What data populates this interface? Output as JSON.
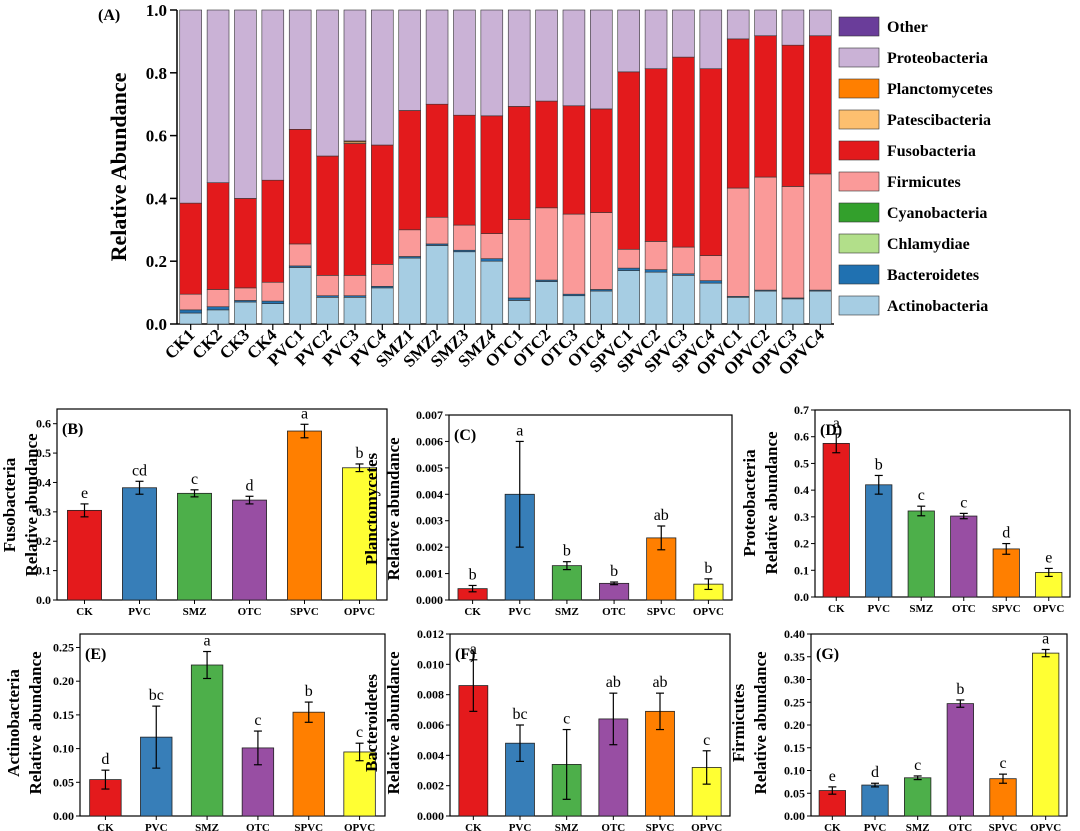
{
  "chart_data": [
    {
      "type": "bar",
      "subtype": "stacked-100",
      "panel": "(A)",
      "ylabel": "Relative Abundance",
      "ylim": [
        0,
        1.0
      ],
      "yticks": [
        "0.0",
        "0.2",
        "0.4",
        "0.6",
        "0.8",
        "1.0"
      ],
      "categories": [
        "CK1",
        "CK2",
        "CK3",
        "CK4",
        "PVC1",
        "PVC2",
        "PVC3",
        "PVC4",
        "SMZ1",
        "SMZ2",
        "SMZ3",
        "SMZ4",
        "OTC1",
        "OTC2",
        "OTC3",
        "OTC4",
        "SPVC1",
        "SPVC2",
        "SPVC3",
        "SPVC4",
        "OPVC1",
        "OPVC2",
        "OPVC3",
        "OPVC4"
      ],
      "legend_position": "right",
      "series": [
        {
          "name": "Actinobacteria",
          "color": "#a6cde3",
          "values": [
            0.035,
            0.045,
            0.07,
            0.065,
            0.18,
            0.085,
            0.085,
            0.115,
            0.21,
            0.25,
            0.23,
            0.2,
            0.075,
            0.135,
            0.09,
            0.105,
            0.17,
            0.165,
            0.155,
            0.13,
            0.085,
            0.105,
            0.08,
            0.105
          ]
        },
        {
          "name": "Bacteroidetes",
          "color": "#2071b1",
          "values": [
            0.01,
            0.01,
            0.005,
            0.008,
            0.005,
            0.005,
            0.005,
            0.005,
            0.005,
            0.005,
            0.005,
            0.008,
            0.008,
            0.005,
            0.005,
            0.005,
            0.008,
            0.008,
            0.005,
            0.008,
            0.003,
            0.003,
            0.003,
            0.003
          ]
        },
        {
          "name": "Chlamydiae",
          "color": "#b2df8a",
          "values": [
            0,
            0,
            0,
            0,
            0,
            0,
            0,
            0,
            0,
            0,
            0,
            0,
            0,
            0,
            0,
            0,
            0,
            0,
            0,
            0,
            0,
            0,
            0,
            0
          ]
        },
        {
          "name": "Cyanobacteria",
          "color": "#33a02c",
          "values": [
            0,
            0,
            0,
            0,
            0,
            0,
            0,
            0,
            0,
            0,
            0,
            0,
            0,
            0,
            0,
            0,
            0,
            0,
            0,
            0,
            0,
            0,
            0,
            0
          ]
        },
        {
          "name": "Firmicutes",
          "color": "#fa9a99",
          "values": [
            0.05,
            0.055,
            0.04,
            0.06,
            0.07,
            0.065,
            0.065,
            0.07,
            0.085,
            0.085,
            0.08,
            0.08,
            0.25,
            0.23,
            0.255,
            0.245,
            0.06,
            0.09,
            0.085,
            0.08,
            0.345,
            0.36,
            0.355,
            0.37
          ]
        },
        {
          "name": "Fusobacteria",
          "color": "#e31a1c",
          "values": [
            0.29,
            0.34,
            0.285,
            0.325,
            0.365,
            0.38,
            0.42,
            0.38,
            0.38,
            0.36,
            0.35,
            0.375,
            0.36,
            0.34,
            0.345,
            0.33,
            0.565,
            0.55,
            0.605,
            0.595,
            0.475,
            0.45,
            0.45,
            0.44
          ]
        },
        {
          "name": "Patescibacteria",
          "color": "#fdbf6f",
          "values": [
            0,
            0,
            0,
            0,
            0,
            0,
            0.005,
            0,
            0,
            0,
            0,
            0,
            0,
            0,
            0,
            0,
            0,
            0,
            0,
            0,
            0,
            0,
            0,
            0
          ]
        },
        {
          "name": "Planctomycetes",
          "color": "#ff7f00",
          "values": [
            0,
            0,
            0,
            0,
            0,
            0,
            0.003,
            0,
            0,
            0,
            0,
            0,
            0,
            0,
            0,
            0,
            0,
            0,
            0,
            0,
            0,
            0,
            0,
            0
          ]
        },
        {
          "name": "Proteobacteria",
          "color": "#cab2d6",
          "values": [
            0.615,
            0.55,
            0.6,
            0.542,
            0.38,
            0.465,
            0.417,
            0.43,
            0.32,
            0.3,
            0.335,
            0.337,
            0.307,
            0.29,
            0.305,
            0.315,
            0.197,
            0.187,
            0.15,
            0.187,
            0.092,
            0.082,
            0.112,
            0.082
          ]
        },
        {
          "name": "Other",
          "color": "#6a3d9a",
          "values": [
            0,
            0,
            0,
            0,
            0,
            0,
            0,
            0,
            0,
            0,
            0,
            0,
            0,
            0,
            0,
            0,
            0,
            0,
            0,
            0,
            0,
            0,
            0,
            0
          ]
        }
      ]
    },
    {
      "type": "bar",
      "panel": "(B)",
      "ylabel": "Fusobacteria",
      "ylabel2": "Relative abundance",
      "categories": [
        "CK",
        "PVC",
        "SMZ",
        "OTC",
        "SPVC",
        "OPVC"
      ],
      "values": [
        0.305,
        0.382,
        0.363,
        0.34,
        0.575,
        0.45
      ],
      "errors": [
        0.022,
        0.022,
        0.012,
        0.013,
        0.023,
        0.013
      ],
      "letters": [
        "e",
        "cd",
        "c",
        "d",
        "a",
        "b"
      ],
      "colors": [
        "#e41a1c",
        "#377eb8",
        "#4daf4a",
        "#984ea3",
        "#ff7f00",
        "#ffff33"
      ],
      "ylim": [
        0,
        0.65
      ],
      "yticks": [
        "0.0",
        "0.1",
        "0.2",
        "0.3",
        "0.4",
        "0.5",
        "0.6"
      ]
    },
    {
      "type": "bar",
      "panel": "(C)",
      "ylabel": "Planctomycetes",
      "ylabel2": "Relative abundance",
      "categories": [
        "CK",
        "PVC",
        "SMZ",
        "OTC",
        "SPVC",
        "OPVC"
      ],
      "values": [
        0.00043,
        0.004,
        0.0013,
        0.00063,
        0.00235,
        0.0006
      ],
      "errors": [
        0.00012,
        0.002,
        0.00015,
        5e-05,
        0.00045,
        0.0002
      ],
      "letters": [
        "b",
        "a",
        "b",
        "b",
        "ab",
        "b"
      ],
      "colors": [
        "#e41a1c",
        "#377eb8",
        "#4daf4a",
        "#984ea3",
        "#ff7f00",
        "#ffff33"
      ],
      "ylim": [
        0,
        0.007
      ],
      "yticks": [
        "0.000",
        "0.001",
        "0.002",
        "0.003",
        "0.004",
        "0.005",
        "0.006",
        "0.007"
      ]
    },
    {
      "type": "bar",
      "panel": "(D)",
      "ylabel": "Proteobacteria",
      "ylabel2": "Relative abundance",
      "categories": [
        "CK",
        "PVC",
        "SMZ",
        "OTC",
        "SPVC",
        "OPVC"
      ],
      "values": [
        0.575,
        0.42,
        0.322,
        0.303,
        0.18,
        0.092
      ],
      "errors": [
        0.035,
        0.035,
        0.018,
        0.01,
        0.02,
        0.015
      ],
      "letters": [
        "a",
        "b",
        "c",
        "c",
        "d",
        "e"
      ],
      "colors": [
        "#e41a1c",
        "#377eb8",
        "#4daf4a",
        "#984ea3",
        "#ff7f00",
        "#ffff33"
      ],
      "ylim": [
        0,
        0.7
      ],
      "yticks": [
        "0.0",
        "0.1",
        "0.2",
        "0.3",
        "0.4",
        "0.5",
        "0.6",
        "0.7"
      ]
    },
    {
      "type": "bar",
      "panel": "(E)",
      "ylabel": "Actinobacteria",
      "ylabel2": "Relative abundance",
      "categories": [
        "CK",
        "PVC",
        "SMZ",
        "OTC",
        "SPVC",
        "OPVC"
      ],
      "values": [
        0.054,
        0.117,
        0.224,
        0.101,
        0.154,
        0.095
      ],
      "errors": [
        0.014,
        0.046,
        0.02,
        0.025,
        0.015,
        0.013
      ],
      "letters": [
        "d",
        "bc",
        "a",
        "c",
        "b",
        "c"
      ],
      "colors": [
        "#e41a1c",
        "#377eb8",
        "#4daf4a",
        "#984ea3",
        "#ff7f00",
        "#ffff33"
      ],
      "ylim": [
        0,
        0.27
      ],
      "yticks": [
        "0.00",
        "0.05",
        "0.10",
        "0.15",
        "0.20",
        "0.25"
      ]
    },
    {
      "type": "bar",
      "panel": "(F)",
      "ylabel": "Bacteroidetes",
      "ylabel2": "Relative abundance",
      "categories": [
        "CK",
        "PVC",
        "SMZ",
        "OTC",
        "SPVC",
        "OPVC"
      ],
      "values": [
        0.0086,
        0.0048,
        0.0034,
        0.0064,
        0.0069,
        0.0032
      ],
      "errors": [
        0.0017,
        0.0012,
        0.0023,
        0.0017,
        0.0012,
        0.0011
      ],
      "letters": [
        "a",
        "bc",
        "c",
        "ab",
        "ab",
        "c"
      ],
      "colors": [
        "#e41a1c",
        "#377eb8",
        "#4daf4a",
        "#984ea3",
        "#ff7f00",
        "#ffff33"
      ],
      "ylim": [
        0,
        0.012
      ],
      "yticks": [
        "0.000",
        "0.002",
        "0.004",
        "0.006",
        "0.008",
        "0.010",
        "0.012"
      ]
    },
    {
      "type": "bar",
      "panel": "(G)",
      "ylabel": "Firmicutes",
      "ylabel2": "Relative abundance",
      "categories": [
        "CK",
        "PVC",
        "SMZ",
        "OTC",
        "SPVC",
        "OPVC"
      ],
      "values": [
        0.056,
        0.068,
        0.084,
        0.247,
        0.082,
        0.358
      ],
      "errors": [
        0.008,
        0.004,
        0.004,
        0.008,
        0.01,
        0.008
      ],
      "letters": [
        "e",
        "d",
        "c",
        "b",
        "c",
        "a"
      ],
      "colors": [
        "#e41a1c",
        "#377eb8",
        "#4daf4a",
        "#984ea3",
        "#ff7f00",
        "#ffff33"
      ],
      "ylim": [
        0,
        0.4
      ],
      "yticks": [
        "0.00",
        "0.05",
        "0.10",
        "0.15",
        "0.20",
        "0.25",
        "0.30",
        "0.35",
        "0.40"
      ]
    }
  ]
}
